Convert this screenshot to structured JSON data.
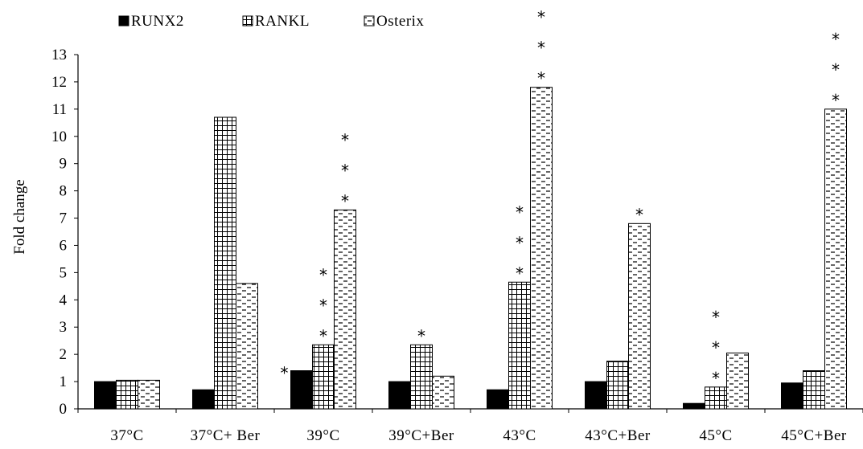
{
  "chart_data": {
    "type": "bar",
    "title": "",
    "xlabel": "",
    "ylabel": "Fold change",
    "ylim": [
      0,
      13
    ],
    "yticks": [
      0,
      1,
      2,
      3,
      4,
      5,
      6,
      7,
      8,
      9,
      10,
      11,
      12,
      13
    ],
    "grid": false,
    "legend_position": "top-left",
    "categories": [
      "37°C",
      "37°C+ Ber",
      "39°C",
      "39°C+Ber",
      "43°C",
      "43°C+Ber",
      "45°C",
      "45°C+Ber"
    ],
    "series": [
      {
        "name": "RUNX2",
        "pattern": "solid",
        "values": [
          1.0,
          0.7,
          1.4,
          1.0,
          0.7,
          1.0,
          0.2,
          0.95
        ],
        "stars": [
          0,
          0,
          1,
          0,
          0,
          0,
          0,
          0
        ]
      },
      {
        "name": "RANKL",
        "pattern": "grid",
        "values": [
          1.05,
          10.7,
          2.35,
          2.35,
          4.65,
          1.75,
          0.8,
          1.4
        ],
        "stars": [
          0,
          0,
          3,
          1,
          3,
          0,
          3,
          0
        ]
      },
      {
        "name": "Osterix",
        "pattern": "dashes",
        "values": [
          1.05,
          4.6,
          7.3,
          1.2,
          11.8,
          6.8,
          2.05,
          11.0
        ],
        "stars": [
          0,
          0,
          3,
          0,
          3,
          1,
          0,
          3
        ]
      }
    ],
    "significance_marker": "*",
    "colors": {
      "fill_solid": "#000000",
      "stroke": "#000000",
      "background": "#ffffff"
    }
  }
}
